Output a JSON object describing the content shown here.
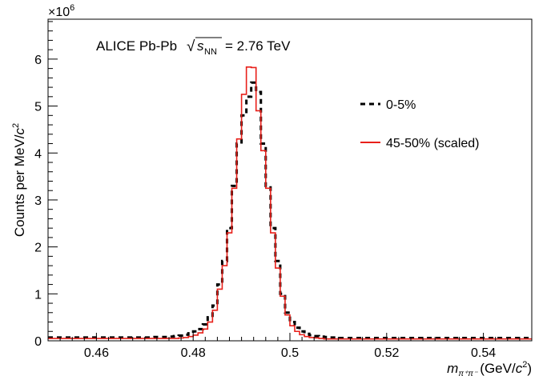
{
  "chart_data": {
    "type": "line",
    "annotation": {
      "prefix": "ALICE Pb-Pb",
      "sqrt_symbol": "√",
      "s_symbol": "s",
      "s_subscript": "NN",
      "suffix": "= 2.76 TeV"
    },
    "ylabel": "Counts per MeV/",
    "ylabel_c": "c",
    "ylabel_exp": "2",
    "y_multiplier": "×10",
    "y_multiplier_exp": "6",
    "xlabel": {
      "m": "m",
      "subscript": "π⁺π⁻",
      "units": "(GeV/",
      "c": "c",
      "exp": "2",
      "close": ")"
    },
    "xlim": [
      0.45,
      0.55
    ],
    "ylim": [
      0,
      6.85
    ],
    "x_ticks": [
      0.46,
      0.48,
      0.5,
      0.52,
      0.54
    ],
    "x_tick_labels": [
      "0.46",
      "0.48",
      "0.5",
      "0.52",
      "0.54"
    ],
    "y_ticks": [
      0,
      1,
      2,
      3,
      4,
      5,
      6
    ],
    "y_tick_labels": [
      "0",
      "1",
      "2",
      "3",
      "4",
      "5",
      "6"
    ],
    "bin_width": 0.001,
    "bin_start": 0.45,
    "series": [
      {
        "name": "0-5%",
        "color": "#000000",
        "style": "dashed",
        "values": [
          0.07,
          0.07,
          0.07,
          0.07,
          0.07,
          0.07,
          0.07,
          0.07,
          0.07,
          0.07,
          0.07,
          0.07,
          0.07,
          0.07,
          0.07,
          0.07,
          0.07,
          0.07,
          0.07,
          0.07,
          0.07,
          0.07,
          0.08,
          0.08,
          0.08,
          0.09,
          0.1,
          0.11,
          0.13,
          0.16,
          0.2,
          0.25,
          0.35,
          0.5,
          0.75,
          1.2,
          1.7,
          2.4,
          3.3,
          4.2,
          4.8,
          5.2,
          5.5,
          5.3,
          4.2,
          3.3,
          2.4,
          1.7,
          1.0,
          0.6,
          0.4,
          0.28,
          0.2,
          0.15,
          0.12,
          0.1,
          0.09,
          0.08,
          0.07,
          0.07,
          0.06,
          0.06,
          0.06,
          0.06,
          0.06,
          0.06,
          0.06,
          0.06,
          0.06,
          0.06,
          0.06,
          0.06,
          0.06,
          0.06,
          0.06,
          0.06,
          0.06,
          0.06,
          0.06,
          0.06,
          0.06,
          0.06,
          0.06,
          0.06,
          0.06,
          0.06,
          0.06,
          0.06,
          0.06,
          0.06,
          0.06,
          0.06,
          0.06,
          0.06,
          0.06,
          0.06,
          0.06,
          0.06,
          0.06,
          0.06
        ]
      },
      {
        "name": "45-50% (scaled)",
        "color": "#e8201a",
        "style": "solid",
        "values": [
          0.05,
          0.05,
          0.05,
          0.05,
          0.05,
          0.05,
          0.05,
          0.05,
          0.05,
          0.05,
          0.05,
          0.05,
          0.05,
          0.05,
          0.05,
          0.05,
          0.05,
          0.05,
          0.05,
          0.05,
          0.05,
          0.05,
          0.05,
          0.05,
          0.05,
          0.05,
          0.05,
          0.06,
          0.07,
          0.09,
          0.12,
          0.17,
          0.25,
          0.4,
          0.65,
          1.1,
          1.6,
          2.3,
          3.25,
          4.3,
          5.25,
          5.83,
          5.82,
          4.9,
          4.05,
          3.25,
          2.3,
          1.55,
          0.95,
          0.55,
          0.32,
          0.2,
          0.13,
          0.09,
          0.07,
          0.06,
          0.05,
          0.04,
          0.04,
          0.04,
          0.04,
          0.04,
          0.04,
          0.04,
          0.04,
          0.04,
          0.04,
          0.04,
          0.04,
          0.04,
          0.04,
          0.04,
          0.04,
          0.04,
          0.04,
          0.04,
          0.04,
          0.04,
          0.04,
          0.04,
          0.04,
          0.04,
          0.04,
          0.04,
          0.04,
          0.04,
          0.04,
          0.04,
          0.04,
          0.04,
          0.04,
          0.04,
          0.04,
          0.04,
          0.04,
          0.04,
          0.04,
          0.04,
          0.04,
          0.04
        ]
      }
    ],
    "legend_placement": "right",
    "grid": false
  }
}
